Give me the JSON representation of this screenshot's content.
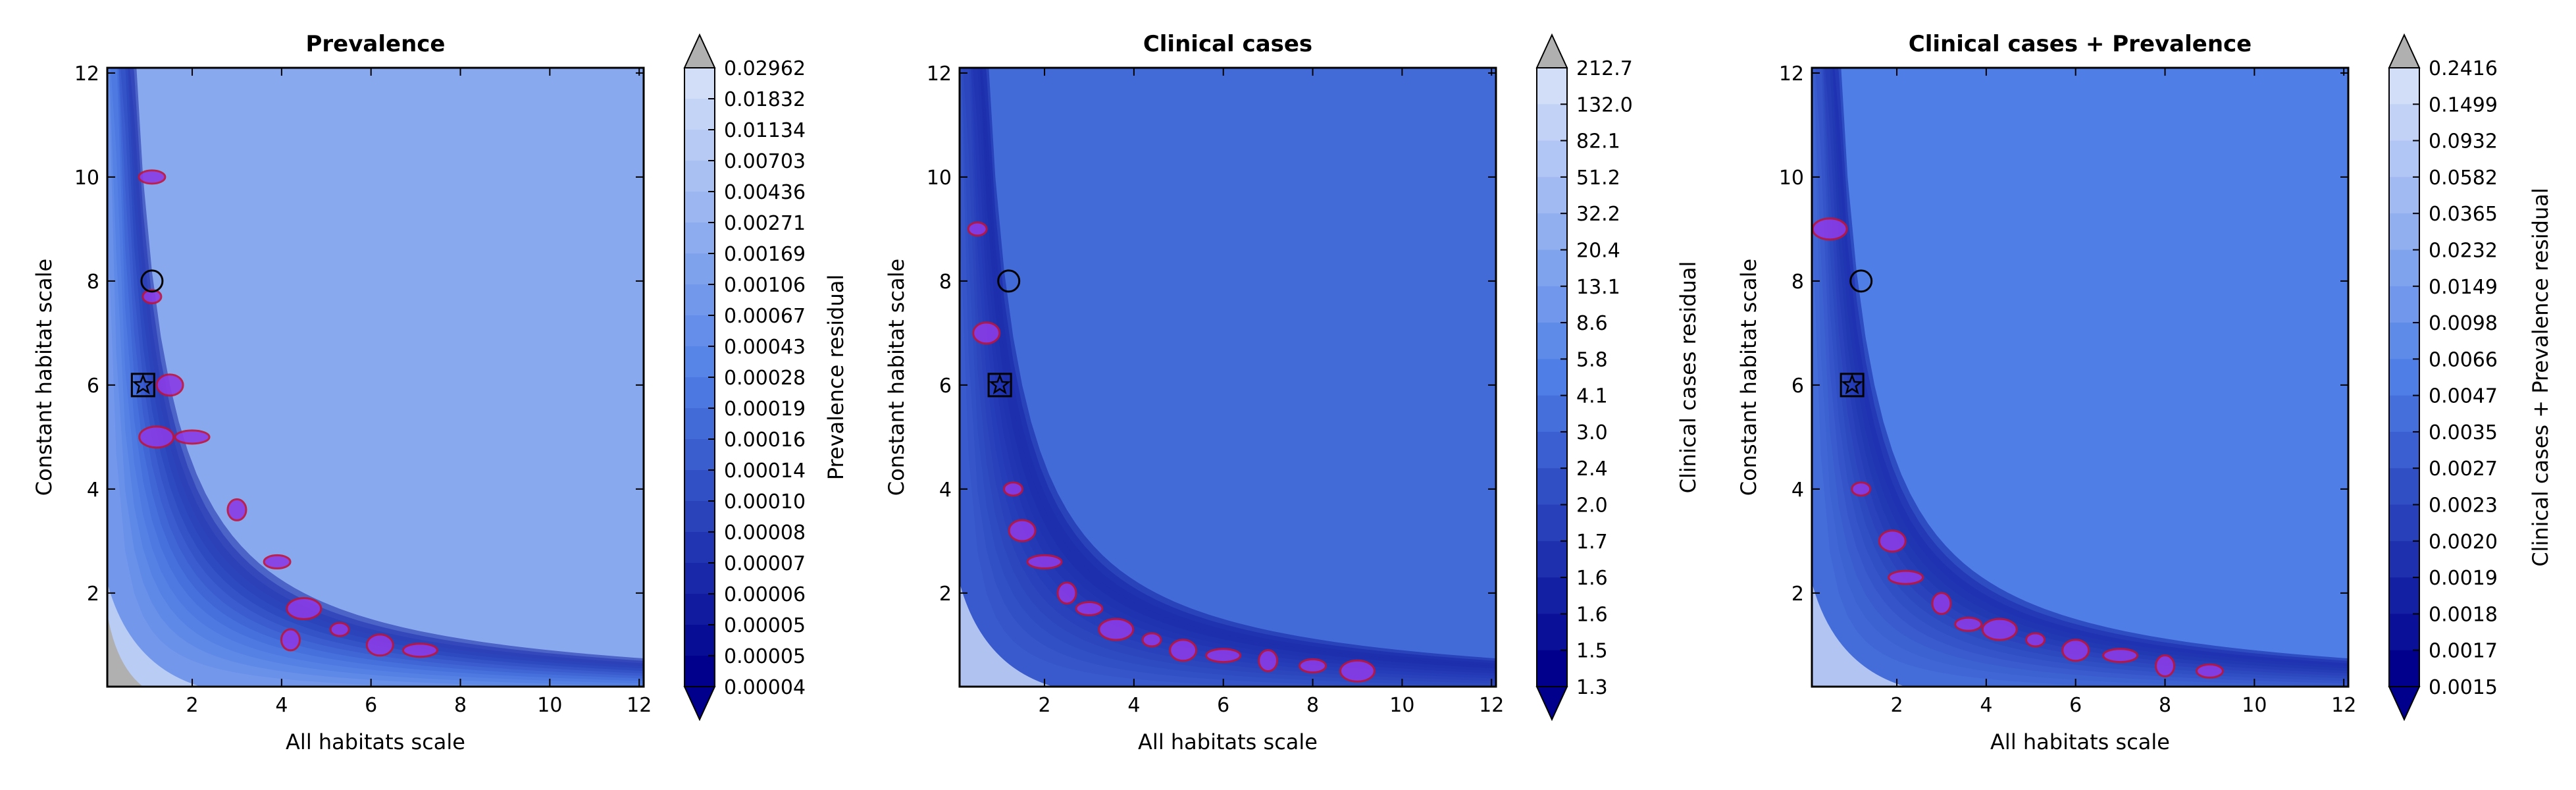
{
  "chart_data": [
    {
      "type": "heatmap",
      "title": "Prevalence",
      "xlabel": "All habitats scale",
      "ylabel": "Constant habitat scale",
      "colorbar_label": "Prevalence residual",
      "xlim": [
        0.1,
        12.1
      ],
      "ylim": [
        0.2,
        12.1
      ],
      "xticks": [
        "2",
        "4",
        "6",
        "8",
        "10",
        "12"
      ],
      "yticks": [
        "2",
        "4",
        "6",
        "8",
        "10",
        "12"
      ],
      "colorbar_ticks": [
        "0.02962",
        "0.01832",
        "0.01134",
        "0.00703",
        "0.00436",
        "0.00271",
        "0.00169",
        "0.00106",
        "0.00067",
        "0.00043",
        "0.00028",
        "0.00019",
        "0.00016",
        "0.00014",
        "0.00010",
        "0.00008",
        "0.00007",
        "0.00006",
        "0.00005",
        "0.00005",
        "0.00004"
      ],
      "markers": [
        {
          "shape": "circle",
          "x": 1.1,
          "y": 8.0
        },
        {
          "shape": "square",
          "x": 0.9,
          "y": 6.0
        },
        {
          "shape": "star",
          "x": 0.9,
          "y": 6.0
        }
      ],
      "highlight_regions": [
        {
          "x": 1.1,
          "y": 7.7
        },
        {
          "x": 1.5,
          "y": 6.0
        },
        {
          "x": 2.0,
          "y": 5.0
        },
        {
          "x": 3.0,
          "y": 3.6
        },
        {
          "x": 3.9,
          "y": 2.6
        },
        {
          "x": 4.5,
          "y": 1.7
        },
        {
          "x": 5.3,
          "y": 1.3
        },
        {
          "x": 6.2,
          "y": 1.0
        },
        {
          "x": 7.1,
          "y": 0.9
        },
        {
          "x": 4.2,
          "y": 1.1
        },
        {
          "x": 1.1,
          "y": 10.0
        },
        {
          "x": 1.2,
          "y": 5.0
        }
      ]
    },
    {
      "type": "heatmap",
      "title": "Clinical cases",
      "xlabel": "All habitats scale",
      "ylabel": "Constant habitat scale",
      "colorbar_label": "Clinical cases residual",
      "xlim": [
        0.1,
        12.1
      ],
      "ylim": [
        0.2,
        12.1
      ],
      "xticks": [
        "2",
        "4",
        "6",
        "8",
        "10",
        "12"
      ],
      "yticks": [
        "2",
        "4",
        "6",
        "8",
        "10",
        "12"
      ],
      "colorbar_ticks": [
        "212.7",
        "132.0",
        "82.1",
        "51.2",
        "32.2",
        "20.4",
        "13.1",
        "8.6",
        "5.8",
        "4.1",
        "3.0",
        "2.4",
        "2.0",
        "1.7",
        "1.6",
        "1.6",
        "1.5",
        "1.3"
      ],
      "markers": [
        {
          "shape": "circle",
          "x": 1.2,
          "y": 8.0
        },
        {
          "shape": "square",
          "x": 1.0,
          "y": 6.0
        },
        {
          "shape": "star",
          "x": 1.0,
          "y": 6.0
        }
      ],
      "highlight_regions": [
        {
          "x": 1.3,
          "y": 4.0
        },
        {
          "x": 1.5,
          "y": 3.2
        },
        {
          "x": 2.0,
          "y": 2.6
        },
        {
          "x": 2.5,
          "y": 2.0
        },
        {
          "x": 3.0,
          "y": 1.7
        },
        {
          "x": 3.6,
          "y": 1.3
        },
        {
          "x": 4.4,
          "y": 1.1
        },
        {
          "x": 5.1,
          "y": 0.9
        },
        {
          "x": 6.0,
          "y": 0.8
        },
        {
          "x": 7.0,
          "y": 0.7
        },
        {
          "x": 8.0,
          "y": 0.6
        },
        {
          "x": 9.0,
          "y": 0.5
        },
        {
          "x": 0.5,
          "y": 9.0
        },
        {
          "x": 0.7,
          "y": 7.0
        }
      ]
    },
    {
      "type": "heatmap",
      "title": "Clinical cases + Prevalence",
      "xlabel": "All habitats scale",
      "ylabel": "Constant habitat scale",
      "colorbar_label": "Clinical cases + Prevalence residual",
      "xlim": [
        0.1,
        12.1
      ],
      "ylim": [
        0.2,
        12.1
      ],
      "xticks": [
        "2",
        "4",
        "6",
        "8",
        "10",
        "12"
      ],
      "yticks": [
        "2",
        "4",
        "6",
        "8",
        "10",
        "12"
      ],
      "colorbar_ticks": [
        "0.2416",
        "0.1499",
        "0.0932",
        "0.0582",
        "0.0365",
        "0.0232",
        "0.0149",
        "0.0098",
        "0.0066",
        "0.0047",
        "0.0035",
        "0.0027",
        "0.0023",
        "0.0020",
        "0.0019",
        "0.0018",
        "0.0017",
        "0.0015"
      ],
      "markers": [
        {
          "shape": "circle",
          "x": 1.2,
          "y": 8.0
        },
        {
          "shape": "square",
          "x": 1.0,
          "y": 6.0
        },
        {
          "shape": "star",
          "x": 1.0,
          "y": 6.0
        }
      ],
      "highlight_regions": [
        {
          "x": 1.2,
          "y": 4.0
        },
        {
          "x": 1.9,
          "y": 3.0
        },
        {
          "x": 2.2,
          "y": 2.3
        },
        {
          "x": 3.0,
          "y": 1.8
        },
        {
          "x": 3.6,
          "y": 1.4
        },
        {
          "x": 4.3,
          "y": 1.3
        },
        {
          "x": 5.1,
          "y": 1.1
        },
        {
          "x": 6.0,
          "y": 0.9
        },
        {
          "x": 7.0,
          "y": 0.8
        },
        {
          "x": 8.0,
          "y": 0.6
        },
        {
          "x": 9.0,
          "y": 0.5
        },
        {
          "x": 0.5,
          "y": 9.0
        }
      ]
    }
  ],
  "colors": {
    "dark": "#00008c",
    "mid": "#4f7fe6",
    "light": "#d2def8",
    "highlight_fill": "#8a3ce6",
    "highlight_edge": "#c0143c",
    "below_range": "#b0b0b0"
  }
}
